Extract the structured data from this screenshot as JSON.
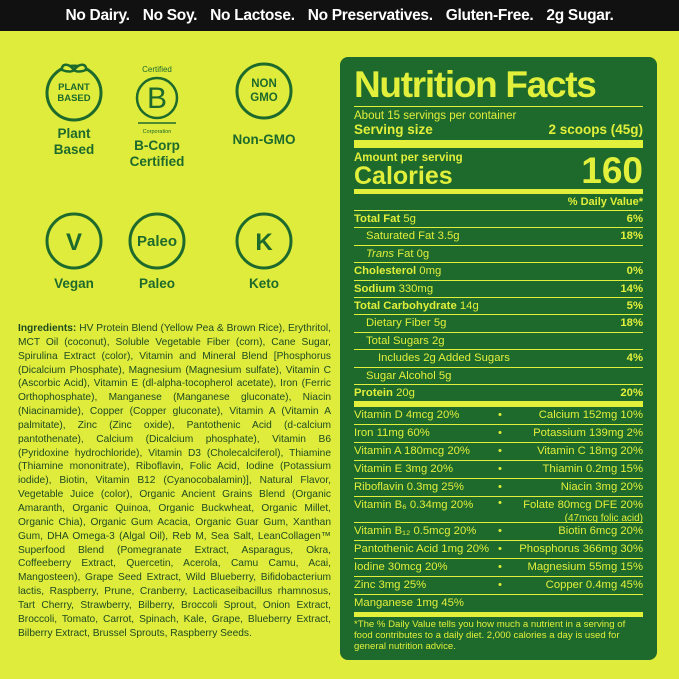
{
  "banner": [
    "No Dairy.",
    "No Soy.",
    "No Lactose.",
    "No Preservatives.",
    "Gluten-Free.",
    "2g Sugar."
  ],
  "badges": [
    {
      "icon": "PLANT BASED",
      "label": "Plant Based"
    },
    {
      "icon_top": "Certified",
      "icon": "B",
      "icon_bottom": "Corporation",
      "label": "B-Corp Certified"
    },
    {
      "icon": "NON GMO",
      "label": "Non-GMO"
    },
    {
      "icon": "V",
      "label": "Vegan"
    },
    {
      "icon": "Paleo",
      "label": "Paleo"
    },
    {
      "icon": "K",
      "label": "Keto"
    }
  ],
  "ingredients": {
    "heading": "Ingredients:",
    "text": "HV Protein Blend (Yellow Pea & Brown Rice), Erythritol, MCT Oil (coconut), Soluble Vegetable Fiber (corn), Cane Sugar, Spirulina Extract (color), Vitamin and Mineral Blend [Phosphorus (Dicalcium Phosphate), Magnesium (Magnesium sulfate), Vitamin C (Ascorbic Acid), Vitamin E (dl-alpha-tocopherol acetate), Iron (Ferric Orthophosphate), Manganese (Manganese gluconate), Niacin (Niacinamide), Copper (Copper gluconate), Vitamin A (Vitamin A palmitate), Zinc (Zinc oxide), Pantothenic Acid (d-calcium pantothenate), Calcium (Dicalcium phosphate), Vitamin B6 (Pyridoxine hydrochloride), Vitamin D3 (Cholecalciferol), Thiamine (Thiamine mononitrate), Riboflavin, Folic Acid, Iodine (Potassium iodide), Biotin, Vitamin B12 (Cyanocobalamin)], Natural Flavor, Vegetable Juice (color), Organic Ancient Grains Blend (Organic Amaranth, Organic Quinoa, Organic Buckwheat, Organic Millet, Organic Chia), Organic Gum Acacia, Organic Guar Gum, Xanthan Gum, DHA Omega-3 (Algal Oil), Reb M, Sea Salt, LeanCollagen™ Superfood Blend (Pomegranate Extract, Asparagus, Okra, Coffeeberry Extract, Quercetin, Acerola, Camu Camu, Acai, Mangosteen), Grape Seed Extract, Wild Blueberry, Bifidobacterium lactis, Raspberry, Prune, Cranberry, Lacticaseibacillus rhamnosus, Tart Cherry, Strawberry, Bilberry, Broccoli Sprout, Onion Extract, Broccoli, Tomato, Carrot, Spinach, Kale, Grape, Blueberry Extract, Bilberry Extract, Brussel Sprouts, Raspberry Seeds."
  },
  "nutrition": {
    "title": "Nutrition Facts",
    "servings": "About 15 servings per container",
    "serving_size_label": "Serving size",
    "serving_size": "2 scoops (45g)",
    "amount_label": "Amount per serving",
    "calories_label": "Calories",
    "calories": "160",
    "dv_header": "% Daily Value*",
    "rows": [
      {
        "name": "Total Fat",
        "amount": "5g",
        "dv": "6%"
      },
      {
        "name": "Saturated Fat",
        "amount": "3.5g",
        "dv": "18%"
      },
      {
        "name": "Trans",
        "amount": "Fat 0g"
      },
      {
        "name": "Cholesterol",
        "amount": "0mg",
        "dv": "0%"
      },
      {
        "name": "Sodium",
        "amount": "330mg",
        "dv": "14%"
      },
      {
        "name": "Total Carbohydrate",
        "amount": "14g",
        "dv": "5%"
      },
      {
        "name": "Dietary Fiber",
        "amount": "5g",
        "dv": "18%"
      },
      {
        "name": "Total Sugars",
        "amount": "2g"
      },
      {
        "name": "Includes 2g Added Sugars",
        "dv": "4%"
      },
      {
        "name": "Sugar Alcohol",
        "amount": "5g"
      },
      {
        "name": "Protein",
        "amount": "20g",
        "dv": "20%"
      }
    ],
    "vitamins": [
      [
        "Vitamin D 4mcg 20%",
        "Calcium 152mg 10%"
      ],
      [
        "Iron 11mg 60%",
        "Potassium 139mg 2%"
      ],
      [
        "Vitamin A 180mcg 20%",
        "Vitamin C 18mg 20%"
      ],
      [
        "Vitamin E 3mg 20%",
        "Thiamin 0.2mg 15%"
      ],
      [
        "Riboflavin 0.3mg 25%",
        "Niacin 3mg 20%"
      ],
      [
        "Vitamin B₆ 0.34mg 20%",
        "Folate 80mcg DFE 20%",
        "(47mcg folic acid)"
      ],
      [
        "Vitamin B₁₂ 0.5mcg 20%",
        "Biotin 6mcg 20%"
      ],
      [
        "Pantothenic Acid 1mg 20%",
        "Phosphorus 366mg 30%"
      ],
      [
        "Iodine 30mcg 20%",
        "Magnesium 55mg 15%"
      ],
      [
        "Zinc 3mg 25%",
        "Copper 0.4mg 45%"
      ],
      [
        "Manganese 1mg 45%"
      ]
    ],
    "footnote": "*The % Daily Value tells you how much a nutrient in a serving of food contributes to a daily diet. 2,000 calories a day is used for general nutrition advice."
  }
}
